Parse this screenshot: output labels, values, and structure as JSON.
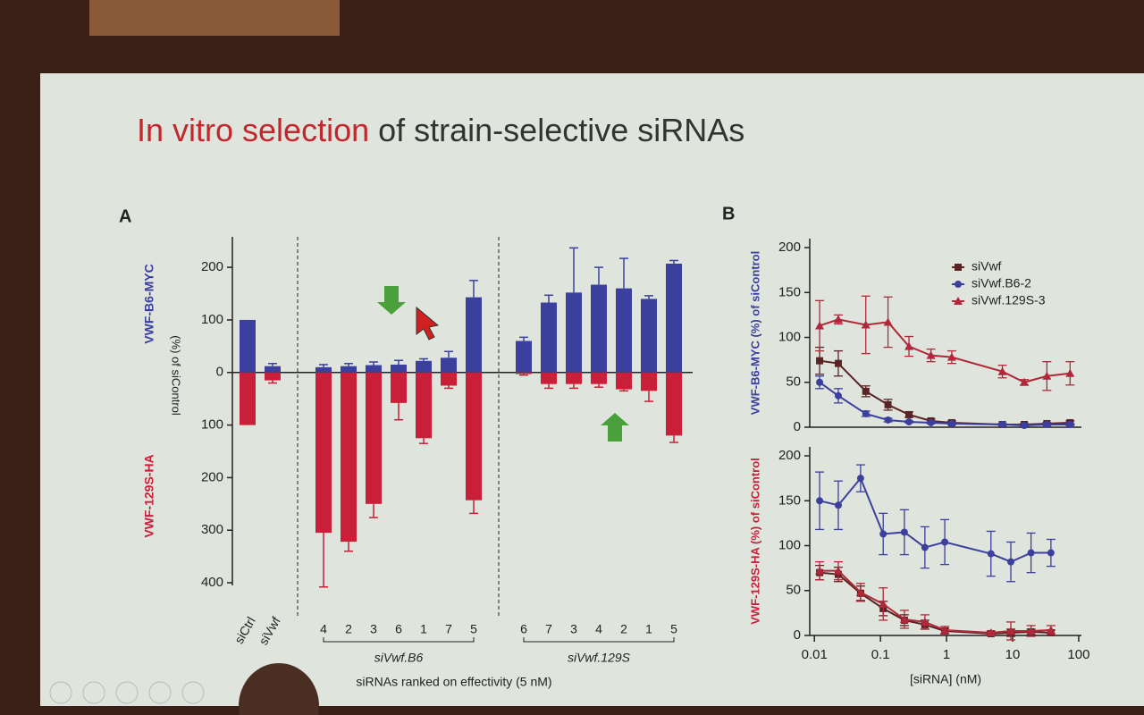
{
  "slide": {
    "title_highlight": "In vitro selection",
    "title_rest": " of strain-selective siRNAs"
  },
  "chart_data": [
    {
      "type": "bar",
      "panel": "A",
      "y_label": "(%) of siControl",
      "x_label": "siRNAs ranked on effectivity (5 nM)",
      "categories": [
        "siCtrl",
        "siVwf",
        "4",
        "2",
        "3",
        "6",
        "1",
        "7",
        "5",
        "6",
        "7",
        "3",
        "4",
        "2",
        "1",
        "5"
      ],
      "group_labels": [
        "siVwf.B6",
        "siVwf.129S"
      ],
      "ylim": [
        -405,
        258
      ],
      "yticks": [
        200,
        100,
        0,
        {
          "value": -100,
          "label": "100"
        },
        {
          "value": -200,
          "label": "200"
        },
        {
          "value": -300,
          "label": "300"
        },
        {
          "value": -400,
          "label": "400"
        }
      ],
      "series": [
        {
          "name": "VWF-B6-MYC",
          "color": "#3b3f9e",
          "values": [
            100,
            12,
            10,
            12,
            14,
            15,
            22,
            28,
            143,
            60,
            133,
            152,
            167,
            160,
            140,
            207
          ],
          "errors": [
            null,
            5,
            5,
            5,
            6,
            8,
            4,
            12,
            32,
            7,
            14,
            85,
            33,
            57,
            6,
            6
          ]
        },
        {
          "name": "VWF-129S-HA",
          "color": "#c91f38",
          "values": [
            -100,
            -15,
            -305,
            -322,
            -250,
            -58,
            -125,
            -25,
            -243,
            -3,
            -22,
            -22,
            -22,
            -32,
            -35,
            -120
          ],
          "errors": [
            null,
            5,
            103,
            18,
            26,
            32,
            10,
            5,
            25,
            2,
            8,
            8,
            6,
            3,
            20,
            13
          ]
        }
      ]
    },
    {
      "type": "line",
      "panel": "B",
      "y_label": "VWF-B6-MYC (%) of siControl",
      "y_label_color": "#3b3f9e",
      "xscale": "log",
      "xlim": [
        0.0085,
        110
      ],
      "ylim": [
        0,
        210
      ],
      "yticks": [
        0,
        50,
        100,
        150,
        200
      ],
      "legend": true,
      "legend_position": "upper right",
      "x": [
        0.012,
        0.023,
        0.06,
        0.13,
        0.27,
        0.58,
        1.2,
        7,
        15,
        33,
        74
      ],
      "series": [
        {
          "name": "siVwf",
          "color": "#5a2424",
          "marker": "square",
          "values": [
            74,
            71,
            40,
            25,
            14,
            7,
            5,
            3,
            3,
            4,
            5
          ],
          "errors": [
            15,
            14,
            6,
            6,
            3,
            2,
            2,
            1,
            1,
            1,
            2
          ]
        },
        {
          "name": "siVwf.B6-2",
          "color": "#3b3f9e",
          "marker": "circle",
          "values": [
            50,
            35,
            15,
            8,
            6,
            5,
            4,
            3,
            2,
            3,
            3
          ],
          "errors": [
            7,
            8,
            3,
            2,
            1,
            1,
            1,
            1,
            1,
            1,
            1
          ]
        },
        {
          "name": "siVwf.129S-3",
          "color": "#b0283a",
          "marker": "triangle",
          "values": [
            113,
            120,
            114,
            117,
            90,
            80,
            78,
            62,
            50,
            57,
            60
          ],
          "errors": [
            28,
            5,
            32,
            28,
            11,
            7,
            7,
            7,
            3,
            16,
            13
          ]
        }
      ]
    },
    {
      "type": "line",
      "y_label": "VWF-129S-HA (%) of siControl",
      "y_label_color": "#c91f38",
      "x_label": "[siRNA] (nM)",
      "xscale": "log",
      "xlim": [
        0.0085,
        110
      ],
      "xticks": [
        0.01,
        0.1,
        1,
        10,
        100
      ],
      "ylim": [
        0,
        210
      ],
      "yticks": [
        0,
        50,
        100,
        150,
        200
      ],
      "x": [
        0.012,
        0.023,
        0.05,
        0.11,
        0.23,
        0.47,
        0.94,
        4.7,
        9.4,
        19,
        38
      ],
      "series": [
        {
          "color": "#3b3f9e",
          "marker": "circle",
          "values": [
            150,
            145,
            175,
            113,
            115,
            98,
            104,
            91,
            82,
            92,
            92
          ],
          "errors": [
            32,
            27,
            15,
            23,
            25,
            23,
            25,
            25,
            22,
            22,
            15
          ]
        },
        {
          "color": "#5a2424",
          "marker": "square",
          "values": [
            70,
            68,
            47,
            30,
            17,
            12,
            5,
            2,
            3,
            4,
            3
          ],
          "errors": [
            8,
            8,
            8,
            8,
            6,
            5,
            3,
            2,
            4,
            3,
            3
          ]
        },
        {
          "color": "#b0283a",
          "marker": "triangle",
          "values": [
            72,
            72,
            48,
            35,
            18,
            15,
            6,
            3,
            5,
            5,
            6
          ],
          "errors": [
            10,
            10,
            10,
            18,
            10,
            8,
            4,
            2,
            10,
            6,
            5
          ]
        }
      ]
    }
  ]
}
